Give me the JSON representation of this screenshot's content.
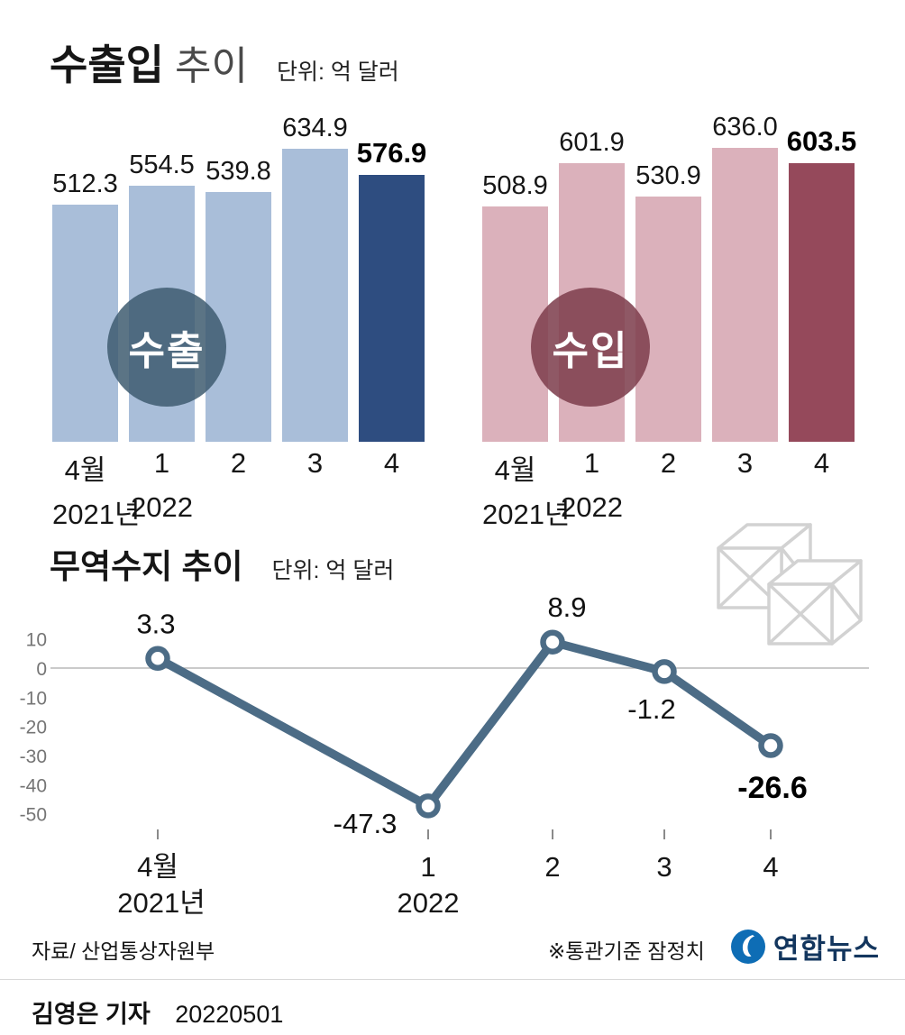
{
  "header": {
    "title": "수출입",
    "subtitle": "추이",
    "unit": "단위: 억 달러"
  },
  "balance_header": {
    "title": "무역수지 추이",
    "unit": "단위: 억 달러"
  },
  "footer": {
    "source": "자료/ 산업통상자원부",
    "note": "※통관기준 잠정치",
    "agency": "연합뉴스"
  },
  "byline": {
    "reporter": "김영은 기자",
    "date": "20220501"
  },
  "colors": {
    "bar_light_blue": "#a9bed9",
    "bar_dark_blue": "#2e4d80",
    "bar_light_pink": "#dbb1bb",
    "bar_dark_red": "#95495b",
    "line": "#4c6c86",
    "export_circle": "#3e5c70d9",
    "import_circle": "#7e3f4ede",
    "logo_blue": "#0e6db5"
  },
  "chart_data": [
    {
      "id": "exports",
      "type": "bar",
      "title": "수출",
      "unit": "억 달러",
      "categories": [
        "4월",
        "1",
        "2",
        "3",
        "4"
      ],
      "category_years": [
        "2021년",
        "2022"
      ],
      "values": [
        512.3,
        554.5,
        539.8,
        634.9,
        576.9
      ],
      "highlight_index": 4,
      "ylim": [
        0,
        636
      ],
      "grid": "none",
      "legend": "circle-badge"
    },
    {
      "id": "imports",
      "type": "bar",
      "title": "수입",
      "unit": "억 달러",
      "categories": [
        "4월",
        "1",
        "2",
        "3",
        "4"
      ],
      "category_years": [
        "2021년",
        "2022"
      ],
      "values": [
        508.9,
        601.9,
        530.9,
        636.0,
        603.5
      ],
      "highlight_index": 4,
      "ylim": [
        0,
        636
      ],
      "grid": "none",
      "legend": "circle-badge"
    },
    {
      "id": "trade_balance",
      "type": "line",
      "title": "무역수지 추이",
      "unit": "억 달러",
      "categories": [
        "4월",
        "1",
        "2",
        "3",
        "4"
      ],
      "category_years": [
        "2021년",
        "2022"
      ],
      "values": [
        3.3,
        -47.3,
        8.9,
        -1.2,
        -26.6
      ],
      "y_ticks": [
        10,
        0,
        -10,
        -20,
        -30,
        -40,
        -50
      ],
      "ylim": [
        -55,
        15
      ],
      "highlight_index": 4,
      "grid": "zero-line-only",
      "legend": "none"
    }
  ]
}
